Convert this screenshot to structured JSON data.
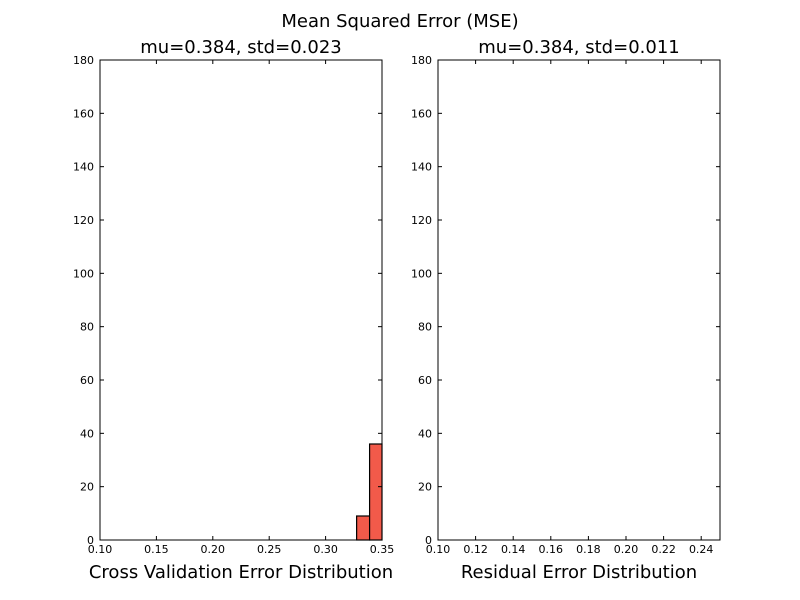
{
  "figure": {
    "title": "Mean Squared Error (MSE)"
  },
  "chart_data": [
    {
      "type": "bar",
      "title": "mu=0.384, std=0.023",
      "xlabel": "Cross Validation Error Distribution",
      "ylabel": "",
      "xlim": [
        0.1,
        0.35
      ],
      "ylim": [
        0,
        180
      ],
      "xticks": [
        "0.10",
        "0.15",
        "0.20",
        "0.25",
        "0.30",
        "0.35"
      ],
      "yticks": [
        "0",
        "20",
        "40",
        "60",
        "80",
        "100",
        "120",
        "140",
        "160",
        "180"
      ],
      "bar_color": "#f25a4a",
      "bins": [
        {
          "x0": 0.3275,
          "x1": 0.339,
          "count": 9
        },
        {
          "x0": 0.339,
          "x1": 0.3505,
          "count": 36
        }
      ]
    },
    {
      "type": "bar",
      "title": "mu=0.384, std=0.011",
      "xlabel": "Residual Error Distribution",
      "ylabel": "",
      "xlim": [
        0.1,
        0.25
      ],
      "ylim": [
        0,
        180
      ],
      "xticks": [
        "0.10",
        "0.12",
        "0.14",
        "0.16",
        "0.18",
        "0.20",
        "0.22",
        "0.24"
      ],
      "yticks": [
        "0",
        "20",
        "40",
        "60",
        "80",
        "100",
        "120",
        "140",
        "160",
        "180"
      ],
      "bar_color": "#f25a4a",
      "bins": []
    }
  ]
}
